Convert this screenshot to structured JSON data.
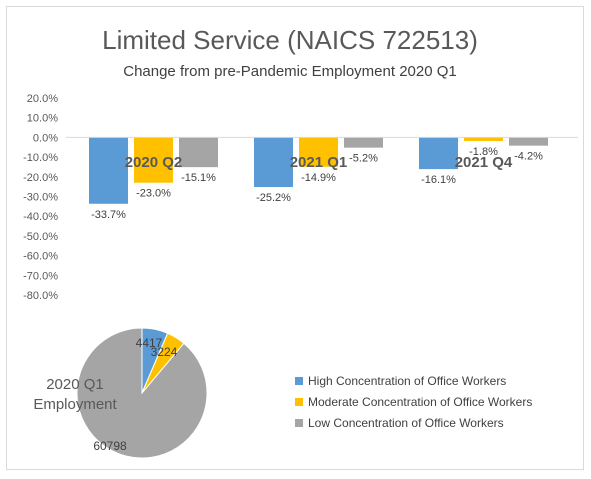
{
  "title": "Limited Service (NAICS 722513)",
  "subtitle": "Change from pre-Pandemic Employment 2020 Q1",
  "colors": {
    "high": "#5b9bd5",
    "moderate": "#ffc000",
    "low": "#a5a5a5",
    "axis": "#d9d9d9",
    "text": "#595959"
  },
  "chart_data": [
    {
      "type": "bar",
      "categories": [
        "2020 Q2",
        "2021 Q1",
        "2021 Q4"
      ],
      "series": [
        {
          "name": "High Concentration of Office Workers",
          "values": [
            -33.7,
            -25.2,
            -16.1
          ],
          "labels": [
            "-33.7%",
            "-25.2%",
            "-16.1%"
          ]
        },
        {
          "name": "Moderate Concentration of Office Workers",
          "values": [
            -23.0,
            -14.9,
            -1.8
          ],
          "labels": [
            "-23.0%",
            "-14.9%",
            "-1.8%"
          ]
        },
        {
          "name": "Low Concentration of Office Workers",
          "values": [
            -15.1,
            -5.2,
            -4.2
          ],
          "labels": [
            "-15.1%",
            "-5.2%",
            "-4.2%"
          ]
        }
      ],
      "ylim": [
        -80,
        20
      ],
      "yticks": [
        "20.0%",
        "10.0%",
        "0.0%",
        "-10.0%",
        "-20.0%",
        "-30.0%",
        "-40.0%",
        "-50.0%",
        "-60.0%",
        "-70.0%",
        "-80.0%"
      ],
      "ytick_values": [
        20,
        10,
        0,
        -10,
        -20,
        -30,
        -40,
        -50,
        -60,
        -70,
        -80
      ],
      "grid": false
    },
    {
      "type": "pie",
      "title": "2020 Q1 Employment",
      "title_lines": [
        "2020 Q1",
        "Employment"
      ],
      "slices": [
        {
          "name": "High Concentration of Office Workers",
          "value": 4417,
          "label": "4417"
        },
        {
          "name": "Moderate Concentration of Office Workers",
          "value": 3224,
          "label": "3224"
        },
        {
          "name": "Low Concentration of Office Workers",
          "value": 60798,
          "label": "60798"
        }
      ],
      "legend": "right"
    }
  ]
}
